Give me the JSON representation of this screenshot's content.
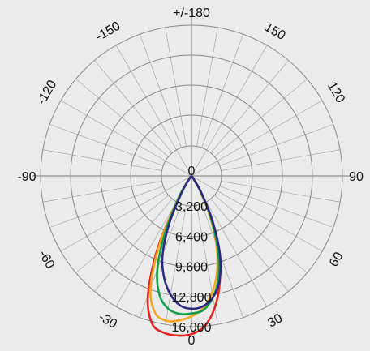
{
  "chart_data": {
    "type": "polar",
    "angle_labels": [
      {
        "angle": 180,
        "text": "+/-180"
      },
      {
        "angle": -150,
        "text": "-150"
      },
      {
        "angle": 150,
        "text": "150"
      },
      {
        "angle": -120,
        "text": "-120"
      },
      {
        "angle": 120,
        "text": "120"
      },
      {
        "angle": -90,
        "text": "-90"
      },
      {
        "angle": 90,
        "text": "90"
      },
      {
        "angle": -60,
        "text": "-60"
      },
      {
        "angle": 60,
        "text": "60"
      },
      {
        "angle": -30,
        "text": "-30"
      },
      {
        "angle": 30,
        "text": "30"
      },
      {
        "angle": 0,
        "text": "0"
      }
    ],
    "radial_ticks": [
      0,
      3200,
      6400,
      9600,
      12800,
      16000
    ],
    "radial_tick_labels": [
      "0",
      "3,200",
      "6,400",
      "9,600",
      "12,800",
      "16,000"
    ],
    "rmax": 16000,
    "grid": true,
    "series": [
      {
        "color": "#e52421",
        "points": [
          [
            -35,
            800
          ],
          [
            -30,
            3000
          ],
          [
            -25,
            8500
          ],
          [
            -20,
            13500
          ],
          [
            -15,
            16200
          ],
          [
            -10,
            16900
          ],
          [
            -5,
            17000
          ],
          [
            0,
            16800
          ],
          [
            5,
            16000
          ],
          [
            10,
            14200
          ],
          [
            15,
            11600
          ],
          [
            20,
            8300
          ],
          [
            25,
            4600
          ],
          [
            30,
            1800
          ],
          [
            35,
            400
          ]
        ]
      },
      {
        "color": "#f5a623",
        "points": [
          [
            -35,
            800
          ],
          [
            -30,
            3000
          ],
          [
            -25,
            8000
          ],
          [
            -20,
            12700
          ],
          [
            -15,
            15000
          ],
          [
            -10,
            15600
          ],
          [
            -5,
            15400
          ],
          [
            0,
            14900
          ],
          [
            5,
            14100
          ],
          [
            10,
            12600
          ],
          [
            15,
            10500
          ],
          [
            20,
            7700
          ],
          [
            25,
            4400
          ],
          [
            30,
            1800
          ],
          [
            35,
            400
          ]
        ]
      },
      {
        "color": "#16a04c",
        "points": [
          [
            -35,
            800
          ],
          [
            -30,
            2800
          ],
          [
            -25,
            6600
          ],
          [
            -20,
            10600
          ],
          [
            -15,
            13100
          ],
          [
            -10,
            14300
          ],
          [
            -5,
            14700
          ],
          [
            0,
            14600
          ],
          [
            5,
            14300
          ],
          [
            10,
            13100
          ],
          [
            15,
            11100
          ],
          [
            20,
            8100
          ],
          [
            25,
            4800
          ],
          [
            30,
            2000
          ],
          [
            35,
            500
          ]
        ]
      },
      {
        "color": "#2a2a86",
        "points": [
          [
            -35,
            600
          ],
          [
            -30,
            2200
          ],
          [
            -25,
            5600
          ],
          [
            -20,
            9000
          ],
          [
            -15,
            11200
          ],
          [
            -10,
            12800
          ],
          [
            -5,
            13800
          ],
          [
            0,
            14100
          ],
          [
            5,
            13900
          ],
          [
            10,
            13100
          ],
          [
            15,
            11500
          ],
          [
            20,
            8800
          ],
          [
            25,
            5300
          ],
          [
            30,
            2200
          ],
          [
            35,
            500
          ]
        ]
      }
    ]
  }
}
